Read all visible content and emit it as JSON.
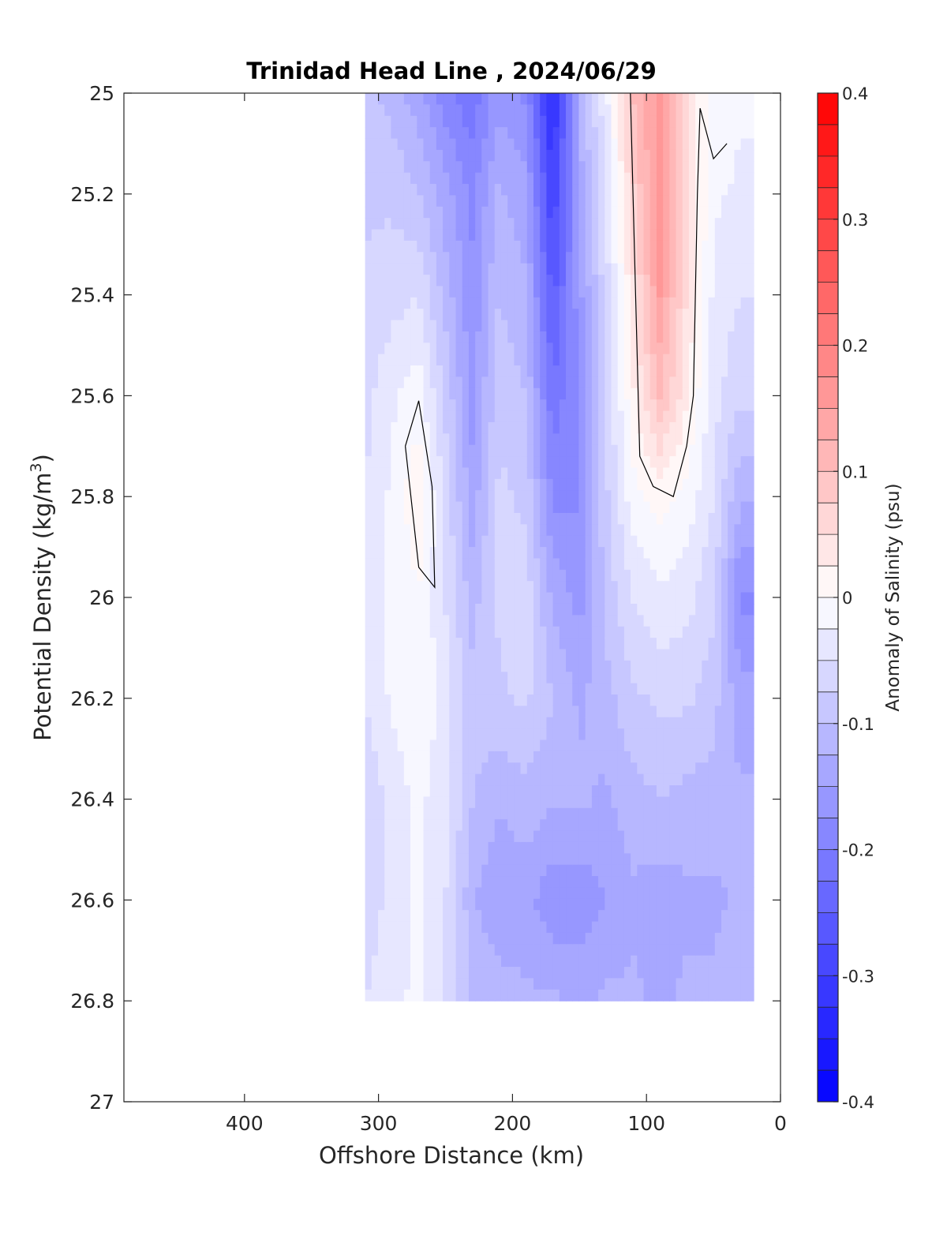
{
  "chart_data": {
    "type": "heatmap",
    "title": "Trinidad Head Line , 2024/06/29",
    "xlabel": "Offshore Distance (km)",
    "ylabel_main": "Potential Density (kg/m",
    "ylabel_sup": "3",
    "ylabel_tail": ")",
    "colorbar_label": "Anomaly of Salinity (psu)",
    "xlim": [
      490,
      0
    ],
    "ylim": [
      25,
      27
    ],
    "x_ticks": [
      400,
      300,
      200,
      100,
      0
    ],
    "y_ticks": [
      25,
      25.2,
      25.4,
      25.6,
      25.8,
      26,
      26.2,
      26.4,
      26.6,
      26.8,
      27
    ],
    "y_tick_labels": [
      "25",
      "25.2",
      "25.4",
      "25.6",
      "25.8",
      "26",
      "26.2",
      "26.4",
      "26.6",
      "26.8",
      "27"
    ],
    "colorbar_range": [
      -0.4,
      0.4
    ],
    "colorbar_levels": 32,
    "colorbar_ticks": [
      0.4,
      0.3,
      0.2,
      0.1,
      0,
      -0.1,
      -0.2,
      -0.3,
      -0.4
    ],
    "colorbar_tick_labels": [
      "0.4",
      "0.3",
      "0.2",
      "0.1",
      "0",
      "-0.1",
      "-0.2",
      "-0.3",
      "-0.4"
    ],
    "colormap": {
      "negative": "#0000ff",
      "zero": "#ffffff",
      "positive": "#ff0000"
    },
    "grid": false,
    "data_extent_km": [
      310,
      20
    ],
    "columns_x_km": [
      310,
      290,
      270,
      250,
      230,
      210,
      190,
      170,
      150,
      130,
      110,
      90,
      70,
      50,
      30
    ],
    "rows_density": [
      25.0,
      25.2,
      25.4,
      25.6,
      25.8,
      26.0,
      26.2,
      26.4,
      26.6,
      26.8
    ],
    "salinity_anomaly": [
      [
        -0.09,
        -0.11,
        -0.14,
        -0.19,
        -0.22,
        -0.16,
        -0.18,
        -0.34,
        -0.12,
        -0.03,
        0.1,
        0.16,
        0.05,
        -0.01,
        -0.02
      ],
      [
        -0.08,
        -0.08,
        -0.1,
        -0.14,
        -0.18,
        -0.12,
        -0.14,
        -0.3,
        -0.14,
        -0.05,
        0.07,
        0.17,
        0.06,
        -0.02,
        -0.03
      ],
      [
        -0.07,
        -0.06,
        -0.05,
        -0.11,
        -0.17,
        -0.1,
        -0.12,
        -0.26,
        -0.16,
        -0.06,
        0.04,
        0.15,
        0.05,
        -0.03,
        -0.05
      ],
      [
        -0.06,
        -0.03,
        -0.01,
        -0.08,
        -0.16,
        -0.08,
        -0.1,
        -0.22,
        -0.17,
        -0.07,
        0.02,
        0.1,
        0.03,
        -0.04,
        -0.07
      ],
      [
        -0.05,
        -0.02,
        0.02,
        -0.06,
        -0.14,
        -0.07,
        -0.08,
        -0.18,
        -0.18,
        -0.08,
        -0.01,
        0.01,
        -0.01,
        -0.05,
        -0.12
      ],
      [
        -0.05,
        -0.02,
        0.0,
        -0.05,
        -0.11,
        -0.07,
        -0.06,
        -0.13,
        -0.16,
        -0.09,
        -0.05,
        -0.03,
        -0.04,
        -0.07,
        -0.18
      ],
      [
        -0.05,
        -0.02,
        0.0,
        -0.04,
        -0.09,
        -0.08,
        -0.07,
        -0.1,
        -0.13,
        -0.11,
        -0.08,
        -0.07,
        -0.07,
        -0.09,
        -0.14
      ],
      [
        -0.07,
        -0.04,
        -0.02,
        -0.04,
        -0.1,
        -0.12,
        -0.11,
        -0.12,
        -0.12,
        -0.13,
        -0.11,
        -0.1,
        -0.11,
        -0.11,
        -0.12
      ],
      [
        -0.07,
        -0.04,
        -0.02,
        -0.05,
        -0.12,
        -0.15,
        -0.14,
        -0.17,
        -0.17,
        -0.15,
        -0.13,
        -0.14,
        -0.13,
        -0.13,
        -0.12
      ],
      [
        -0.05,
        -0.03,
        -0.02,
        -0.05,
        -0.1,
        -0.11,
        -0.12,
        -0.12,
        -0.13,
        -0.12,
        -0.12,
        -0.13,
        -0.12,
        -0.12,
        -0.11
      ]
    ],
    "zero_contours": [
      [
        [
          112,
          25.0
        ],
        [
          105,
          25.72
        ],
        [
          95,
          25.78
        ],
        [
          80,
          25.8
        ],
        [
          70,
          25.7
        ],
        [
          65,
          25.6
        ],
        [
          62,
          25.2
        ],
        [
          60,
          25.03
        ],
        [
          50,
          25.13
        ],
        [
          40,
          25.1
        ]
      ],
      [
        [
          280,
          25.7
        ],
        [
          270,
          25.61
        ],
        [
          260,
          25.78
        ],
        [
          258,
          25.98
        ],
        [
          270,
          25.94
        ],
        [
          280,
          25.7
        ]
      ]
    ]
  }
}
